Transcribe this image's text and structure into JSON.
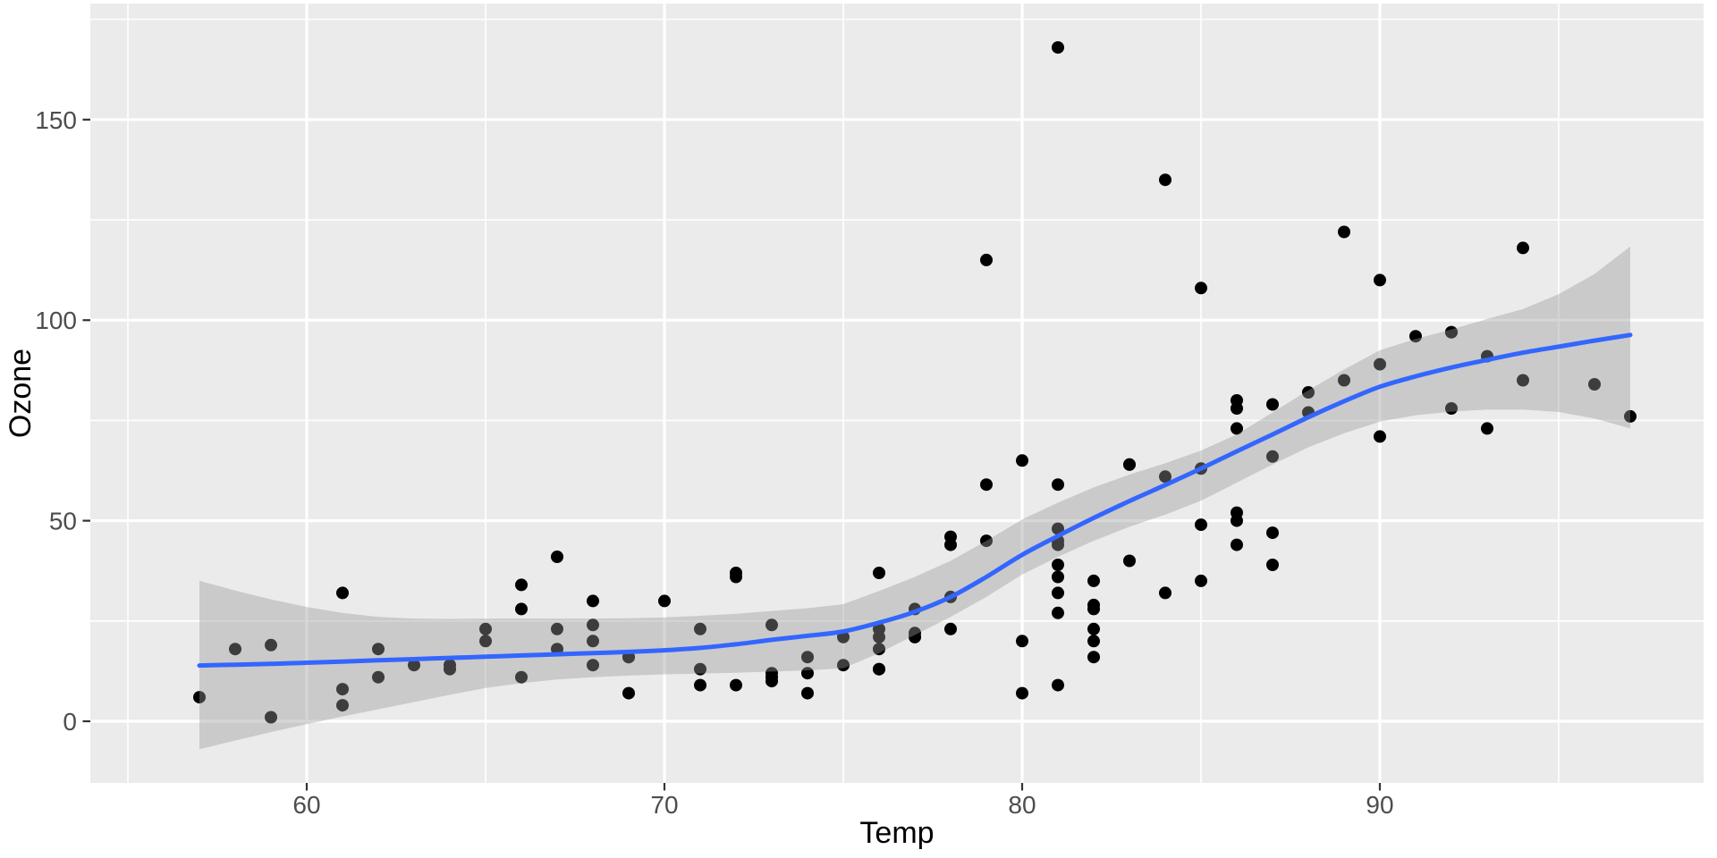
{
  "chart_data": {
    "type": "scatter",
    "title": "",
    "xlabel": "Temp",
    "ylabel": "Ozone",
    "x_ticks": [
      60,
      70,
      80,
      90
    ],
    "y_ticks": [
      0,
      50,
      100,
      150
    ],
    "x_minor_ticks": [
      55,
      65,
      75,
      85,
      95
    ],
    "y_minor_ticks": [
      25,
      75,
      125,
      175
    ],
    "xlim": [
      53.95,
      99.05
    ],
    "ylim": [
      -15.37,
      178.93
    ],
    "legend_position": "none",
    "grid": "white major+minor gridlines on grey panel",
    "series": [
      {
        "name": "observations",
        "points": [
          [
            67,
            41
          ],
          [
            72,
            36
          ],
          [
            74,
            12
          ],
          [
            62,
            18
          ],
          [
            66,
            28
          ],
          [
            65,
            23
          ],
          [
            59,
            19
          ],
          [
            61,
            8
          ],
          [
            74,
            7
          ],
          [
            69,
            16
          ],
          [
            66,
            11
          ],
          [
            68,
            14
          ],
          [
            58,
            18
          ],
          [
            64,
            14
          ],
          [
            66,
            34
          ],
          [
            57,
            6
          ],
          [
            68,
            30
          ],
          [
            62,
            11
          ],
          [
            59,
            1
          ],
          [
            73,
            11
          ],
          [
            61,
            4
          ],
          [
            61,
            32
          ],
          [
            67,
            23
          ],
          [
            81,
            45
          ],
          [
            79,
            115
          ],
          [
            76,
            37
          ],
          [
            82,
            29
          ],
          [
            90,
            71
          ],
          [
            87,
            39
          ],
          [
            82,
            23
          ],
          [
            77,
            21
          ],
          [
            72,
            37
          ],
          [
            65,
            20
          ],
          [
            73,
            12
          ],
          [
            76,
            13
          ],
          [
            84,
            135
          ],
          [
            85,
            49
          ],
          [
            81,
            32
          ],
          [
            83,
            64
          ],
          [
            83,
            40
          ],
          [
            88,
            77
          ],
          [
            92,
            97
          ],
          [
            92,
            97
          ],
          [
            89,
            85
          ],
          [
            73,
            10
          ],
          [
            81,
            27
          ],
          [
            80,
            7
          ],
          [
            81,
            48
          ],
          [
            82,
            35
          ],
          [
            84,
            61
          ],
          [
            87,
            79
          ],
          [
            85,
            63
          ],
          [
            74,
            16
          ],
          [
            86,
            80
          ],
          [
            85,
            108
          ],
          [
            82,
            20
          ],
          [
            86,
            52
          ],
          [
            88,
            82
          ],
          [
            86,
            50
          ],
          [
            83,
            64
          ],
          [
            81,
            59
          ],
          [
            81,
            39
          ],
          [
            81,
            9
          ],
          [
            82,
            16
          ],
          [
            86,
            78
          ],
          [
            85,
            35
          ],
          [
            87,
            66
          ],
          [
            89,
            122
          ],
          [
            90,
            89
          ],
          [
            90,
            110
          ],
          [
            86,
            44
          ],
          [
            82,
            28
          ],
          [
            80,
            65
          ],
          [
            77,
            22
          ],
          [
            79,
            59
          ],
          [
            76,
            23
          ],
          [
            78,
            31
          ],
          [
            78,
            44
          ],
          [
            77,
            21
          ],
          [
            72,
            9
          ],
          [
            79,
            45
          ],
          [
            81,
            168
          ],
          [
            86,
            73
          ],
          [
            97,
            76
          ],
          [
            94,
            118
          ],
          [
            96,
            84
          ],
          [
            94,
            85
          ],
          [
            91,
            96
          ],
          [
            92,
            78
          ],
          [
            93,
            73
          ],
          [
            93,
            91
          ],
          [
            87,
            47
          ],
          [
            84,
            32
          ],
          [
            80,
            20
          ],
          [
            78,
            23
          ],
          [
            75,
            21
          ],
          [
            73,
            24
          ],
          [
            81,
            44
          ],
          [
            76,
            21
          ],
          [
            77,
            28
          ],
          [
            71,
            9
          ],
          [
            71,
            13
          ],
          [
            78,
            46
          ],
          [
            67,
            18
          ],
          [
            76,
            13
          ],
          [
            68,
            24
          ],
          [
            69,
            16
          ],
          [
            64,
            13
          ],
          [
            71,
            23
          ],
          [
            81,
            36
          ],
          [
            69,
            7
          ],
          [
            63,
            14
          ],
          [
            70,
            30
          ],
          [
            75,
            14
          ],
          [
            76,
            18
          ],
          [
            68,
            20
          ]
        ]
      }
    ],
    "smooth": {
      "name": "loess fit",
      "line": [
        [
          57,
          13.9
        ],
        [
          58,
          14.1
        ],
        [
          59,
          14.3
        ],
        [
          60,
          14.6
        ],
        [
          61,
          14.9
        ],
        [
          62,
          15.2
        ],
        [
          63,
          15.5
        ],
        [
          64,
          15.8
        ],
        [
          65,
          16.1
        ],
        [
          66,
          16.4
        ],
        [
          67,
          16.7
        ],
        [
          68,
          17.0
        ],
        [
          69,
          17.3
        ],
        [
          70,
          17.7
        ],
        [
          71,
          18.3
        ],
        [
          72,
          19.2
        ],
        [
          73,
          20.3
        ],
        [
          74,
          21.3
        ],
        [
          75,
          22.4
        ],
        [
          76,
          24.6
        ],
        [
          77,
          27.3
        ],
        [
          78,
          31.0
        ],
        [
          79,
          36.0
        ],
        [
          80,
          41.5
        ],
        [
          81,
          46.2
        ],
        [
          82,
          50.7
        ],
        [
          83,
          54.9
        ],
        [
          84,
          58.9
        ],
        [
          85,
          63.0
        ],
        [
          86,
          67.3
        ],
        [
          87,
          71.5
        ],
        [
          88,
          75.8
        ],
        [
          89,
          79.8
        ],
        [
          90,
          83.4
        ],
        [
          91,
          86.0
        ],
        [
          92,
          88.2
        ],
        [
          93,
          90.1
        ],
        [
          94,
          91.9
        ],
        [
          95,
          93.4
        ],
        [
          96,
          94.9
        ],
        [
          97,
          96.3
        ]
      ],
      "ribbon": [
        [
          57,
          -7.0,
          35.0
        ],
        [
          58,
          -4.8,
          32.6
        ],
        [
          59,
          -2.7,
          30.4
        ],
        [
          60,
          -0.7,
          28.5
        ],
        [
          61,
          1.2,
          27.0
        ],
        [
          62,
          3.0,
          26.0
        ],
        [
          63,
          4.8,
          25.6
        ],
        [
          64,
          6.6,
          25.5
        ],
        [
          65,
          8.3,
          25.6
        ],
        [
          66,
          9.5,
          25.6
        ],
        [
          67,
          10.4,
          25.6
        ],
        [
          68,
          11.0,
          25.6
        ],
        [
          69,
          11.4,
          25.7
        ],
        [
          70,
          11.7,
          25.9
        ],
        [
          71,
          11.9,
          26.3
        ],
        [
          72,
          12.1,
          26.8
        ],
        [
          73,
          12.4,
          27.5
        ],
        [
          74,
          12.7,
          28.2
        ],
        [
          75,
          13.2,
          29.2
        ],
        [
          76,
          17.0,
          32.5
        ],
        [
          77,
          21.5,
          36.0
        ],
        [
          78,
          26.0,
          40.0
        ],
        [
          79,
          31.0,
          45.0
        ],
        [
          80,
          36.6,
          50.3
        ],
        [
          81,
          41.0,
          54.5
        ],
        [
          82,
          45.0,
          58.3
        ],
        [
          83,
          48.5,
          61.5
        ],
        [
          84,
          51.5,
          64.3
        ],
        [
          85,
          55.0,
          67.5
        ],
        [
          86,
          59.5,
          71.5
        ],
        [
          87,
          64.0,
          77.0
        ],
        [
          88,
          68.3,
          82.5
        ],
        [
          89,
          71.8,
          87.7
        ],
        [
          90,
          74.7,
          92.5
        ],
        [
          91,
          76.3,
          95.3
        ],
        [
          92,
          77.2,
          97.7
        ],
        [
          93,
          77.7,
          100.3
        ],
        [
          94,
          77.7,
          102.8
        ],
        [
          95,
          77.1,
          106.5
        ],
        [
          96,
          75.5,
          111.5
        ],
        [
          97,
          73.0,
          118.4
        ]
      ]
    },
    "colors": {
      "figure_background": "#FFFFFF",
      "panel_background": "#EBEBEB",
      "grid": "#FFFFFF",
      "point": "#000000",
      "smooth_line": "#3366FF",
      "ribbon_fill": "#999999",
      "ribbon_opacity": 0.4,
      "tick_label": "#4D4D4D",
      "tick_mark": "#333333",
      "axis_title": "#000000"
    }
  }
}
